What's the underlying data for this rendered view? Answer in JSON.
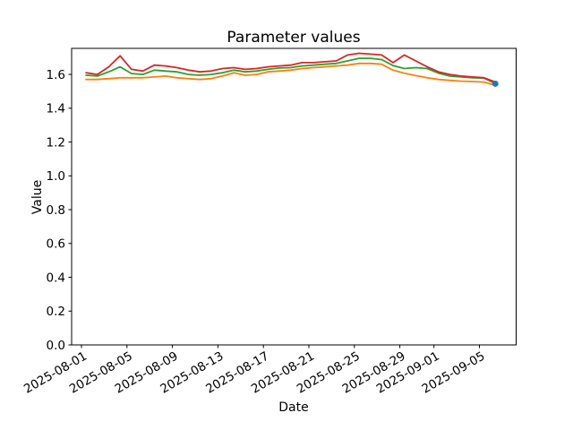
{
  "figure": {
    "background": "#ffffff",
    "frame_color": "#000000"
  },
  "chart_data": {
    "type": "line",
    "title": "Parameter values",
    "xlabel": "Date",
    "ylabel": "Value",
    "grid": false,
    "legend": null,
    "ylim": [
      0.0,
      1.754
    ],
    "x": [
      "2025-08-01",
      "2025-08-02",
      "2025-08-03",
      "2025-08-04",
      "2025-08-05",
      "2025-08-06",
      "2025-08-07",
      "2025-08-08",
      "2025-08-09",
      "2025-08-10",
      "2025-08-11",
      "2025-08-12",
      "2025-08-13",
      "2025-08-14",
      "2025-08-15",
      "2025-08-16",
      "2025-08-17",
      "2025-08-18",
      "2025-08-19",
      "2025-08-20",
      "2025-08-21",
      "2025-08-22",
      "2025-08-23",
      "2025-08-24",
      "2025-08-25",
      "2025-08-26",
      "2025-08-27",
      "2025-08-28",
      "2025-08-29",
      "2025-08-30",
      "2025-08-31",
      "2025-09-01",
      "2025-09-02",
      "2025-09-03",
      "2025-09-04",
      "2025-09-05",
      "2025-09-06"
    ],
    "series": [
      {
        "name": "orange",
        "color": "#ff7f0e",
        "values": [
          1.57,
          1.57,
          1.575,
          1.58,
          1.58,
          1.58,
          1.585,
          1.59,
          1.58,
          1.575,
          1.57,
          1.575,
          1.59,
          1.61,
          1.595,
          1.6,
          1.615,
          1.62,
          1.625,
          1.635,
          1.64,
          1.645,
          1.65,
          1.655,
          1.665,
          1.665,
          1.66,
          1.625,
          1.607,
          1.593,
          1.58,
          1.57,
          1.565,
          1.56,
          1.558,
          1.555,
          1.535
        ]
      },
      {
        "name": "green",
        "color": "#2ca02c",
        "values": [
          1.595,
          1.59,
          1.615,
          1.645,
          1.605,
          1.6,
          1.625,
          1.62,
          1.615,
          1.6,
          1.595,
          1.6,
          1.61,
          1.625,
          1.615,
          1.62,
          1.63,
          1.638,
          1.64,
          1.65,
          1.655,
          1.66,
          1.665,
          1.68,
          1.695,
          1.695,
          1.688,
          1.652,
          1.635,
          1.64,
          1.635,
          1.607,
          1.59,
          1.585,
          1.58,
          1.578,
          1.545
        ]
      },
      {
        "name": "red",
        "color": "#d62728",
        "values": [
          1.61,
          1.6,
          1.645,
          1.71,
          1.63,
          1.62,
          1.655,
          1.65,
          1.64,
          1.625,
          1.615,
          1.62,
          1.635,
          1.64,
          1.63,
          1.635,
          1.645,
          1.65,
          1.655,
          1.67,
          1.67,
          1.675,
          1.68,
          1.715,
          1.725,
          1.72,
          1.715,
          1.67,
          1.715,
          1.68,
          1.645,
          1.615,
          1.6,
          1.59,
          1.585,
          1.58,
          1.555
        ]
      }
    ],
    "end_marker": {
      "name": "latest-point",
      "color": "#1f77b4",
      "x": "2025-09-06",
      "value": 1.545
    },
    "x_ticks": {
      "rotation_deg": -30,
      "indices": [
        0,
        4,
        8,
        12,
        16,
        20,
        24,
        28,
        31,
        35
      ],
      "labels": [
        "2025-08-01",
        "2025-08-05",
        "2025-08-09",
        "2025-08-13",
        "2025-08-17",
        "2025-08-21",
        "2025-08-25",
        "2025-08-29",
        "2025-09-01",
        "2025-09-05"
      ]
    },
    "y_ticks": {
      "values": [
        0.0,
        0.2,
        0.4,
        0.6,
        0.8,
        1.0,
        1.2,
        1.4,
        1.6
      ],
      "labels": [
        "0.0",
        "0.2",
        "0.4",
        "0.6",
        "0.8",
        "1.0",
        "1.2",
        "1.4",
        "1.6"
      ]
    }
  }
}
